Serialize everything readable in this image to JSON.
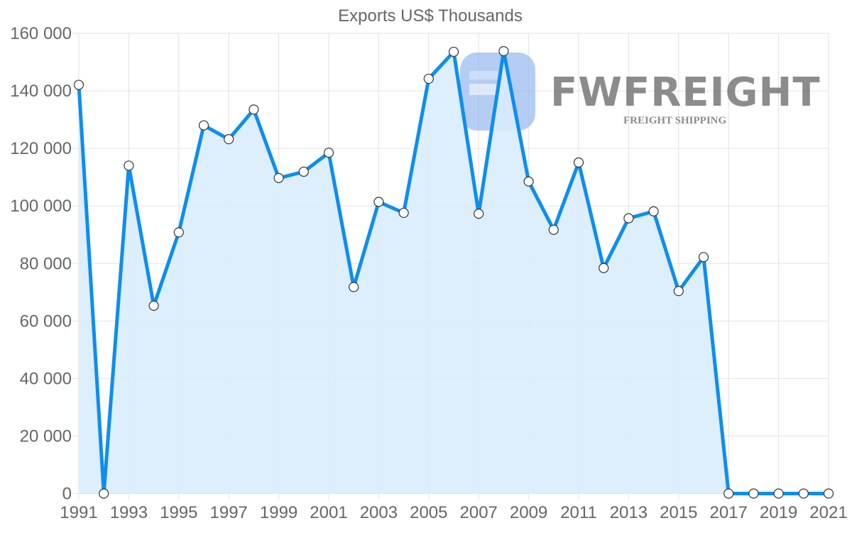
{
  "chart_data": {
    "type": "area",
    "title": "Exports US$ Thousands",
    "xlabel": "",
    "ylabel": "",
    "ylim": [
      0,
      160000
    ],
    "yticks": [
      0,
      20000,
      40000,
      60000,
      80000,
      100000,
      120000,
      140000,
      160000
    ],
    "ytick_labels": [
      "0",
      "20 000",
      "40 000",
      "60 000",
      "80 000",
      "100 000",
      "120 000",
      "140 000",
      "160 000"
    ],
    "x": [
      1991,
      1992,
      1993,
      1994,
      1995,
      1996,
      1997,
      1998,
      1999,
      2000,
      2001,
      2002,
      2003,
      2004,
      2005,
      2006,
      2007,
      2008,
      2009,
      2010,
      2011,
      2012,
      2013,
      2014,
      2015,
      2016,
      2017,
      2018,
      2019,
      2020,
      2021
    ],
    "xtick_labels": [
      "1991",
      "1993",
      "1995",
      "1997",
      "1999",
      "2001",
      "2003",
      "2005",
      "2007",
      "2009",
      "2011",
      "2013",
      "2015",
      "2017",
      "2019",
      "2021"
    ],
    "series": [
      {
        "name": "Exports US$ Thousands",
        "values": [
          142100,
          0,
          114000,
          65300,
          90800,
          128000,
          123200,
          133500,
          109700,
          111900,
          118500,
          71800,
          101400,
          97600,
          144200,
          153600,
          97300,
          153800,
          108500,
          91700,
          115100,
          78400,
          95700,
          98100,
          70400,
          82200,
          0,
          0,
          0,
          0,
          0
        ]
      }
    ],
    "grid": true,
    "legend": "none"
  },
  "colors": {
    "line": "#0d8ef0",
    "fill": "#d9ecfc",
    "grid": "#e2e2e2",
    "axis_text": "#666666",
    "watermark": "#9dbdf0"
  },
  "watermark": {
    "brand": "FWFREIGHT",
    "tagline": "FREIGHT SHIPPING"
  }
}
